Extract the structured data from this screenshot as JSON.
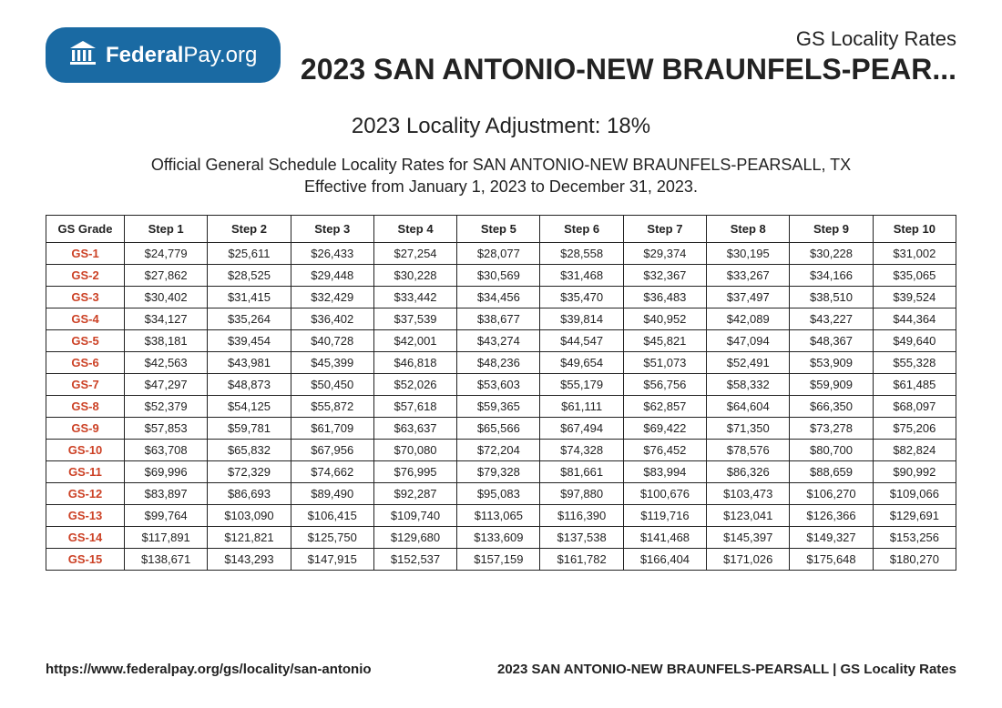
{
  "logo": {
    "text_bold": "Federal",
    "text_light": "Pay.org"
  },
  "header": {
    "subtitle": "GS Locality Rates",
    "title": "2023 SAN ANTONIO-NEW BRAUNFELS-PEAR..."
  },
  "adjustment_line": "2023 Locality Adjustment: 18%",
  "desc_line1": "Official General Schedule Locality Rates for SAN ANTONIO-NEW BRAUNFELS-PEARSALL, TX",
  "desc_line2": "Effective from January 1, 2023 to December 31, 2023.",
  "table": {
    "columns": [
      "GS Grade",
      "Step 1",
      "Step 2",
      "Step 3",
      "Step 4",
      "Step 5",
      "Step 6",
      "Step 7",
      "Step 8",
      "Step 9",
      "Step 10"
    ],
    "rows": [
      [
        "GS-1",
        "$24,779",
        "$25,611",
        "$26,433",
        "$27,254",
        "$28,077",
        "$28,558",
        "$29,374",
        "$30,195",
        "$30,228",
        "$31,002"
      ],
      [
        "GS-2",
        "$27,862",
        "$28,525",
        "$29,448",
        "$30,228",
        "$30,569",
        "$31,468",
        "$32,367",
        "$33,267",
        "$34,166",
        "$35,065"
      ],
      [
        "GS-3",
        "$30,402",
        "$31,415",
        "$32,429",
        "$33,442",
        "$34,456",
        "$35,470",
        "$36,483",
        "$37,497",
        "$38,510",
        "$39,524"
      ],
      [
        "GS-4",
        "$34,127",
        "$35,264",
        "$36,402",
        "$37,539",
        "$38,677",
        "$39,814",
        "$40,952",
        "$42,089",
        "$43,227",
        "$44,364"
      ],
      [
        "GS-5",
        "$38,181",
        "$39,454",
        "$40,728",
        "$42,001",
        "$43,274",
        "$44,547",
        "$45,821",
        "$47,094",
        "$48,367",
        "$49,640"
      ],
      [
        "GS-6",
        "$42,563",
        "$43,981",
        "$45,399",
        "$46,818",
        "$48,236",
        "$49,654",
        "$51,073",
        "$52,491",
        "$53,909",
        "$55,328"
      ],
      [
        "GS-7",
        "$47,297",
        "$48,873",
        "$50,450",
        "$52,026",
        "$53,603",
        "$55,179",
        "$56,756",
        "$58,332",
        "$59,909",
        "$61,485"
      ],
      [
        "GS-8",
        "$52,379",
        "$54,125",
        "$55,872",
        "$57,618",
        "$59,365",
        "$61,111",
        "$62,857",
        "$64,604",
        "$66,350",
        "$68,097"
      ],
      [
        "GS-9",
        "$57,853",
        "$59,781",
        "$61,709",
        "$63,637",
        "$65,566",
        "$67,494",
        "$69,422",
        "$71,350",
        "$73,278",
        "$75,206"
      ],
      [
        "GS-10",
        "$63,708",
        "$65,832",
        "$67,956",
        "$70,080",
        "$72,204",
        "$74,328",
        "$76,452",
        "$78,576",
        "$80,700",
        "$82,824"
      ],
      [
        "GS-11",
        "$69,996",
        "$72,329",
        "$74,662",
        "$76,995",
        "$79,328",
        "$81,661",
        "$83,994",
        "$86,326",
        "$88,659",
        "$90,992"
      ],
      [
        "GS-12",
        "$83,897",
        "$86,693",
        "$89,490",
        "$92,287",
        "$95,083",
        "$97,880",
        "$100,676",
        "$103,473",
        "$106,270",
        "$109,066"
      ],
      [
        "GS-13",
        "$99,764",
        "$103,090",
        "$106,415",
        "$109,740",
        "$113,065",
        "$116,390",
        "$119,716",
        "$123,041",
        "$126,366",
        "$129,691"
      ],
      [
        "GS-14",
        "$117,891",
        "$121,821",
        "$125,750",
        "$129,680",
        "$133,609",
        "$137,538",
        "$141,468",
        "$145,397",
        "$149,327",
        "$153,256"
      ],
      [
        "GS-15",
        "$138,671",
        "$143,293",
        "$147,915",
        "$152,537",
        "$157,159",
        "$161,782",
        "$166,404",
        "$171,026",
        "$175,648",
        "$180,270"
      ]
    ],
    "grade_color": "#cc4125",
    "border_color": "#222222",
    "header_fontsize": 13,
    "cell_fontsize": 13
  },
  "footer": {
    "left": "https://www.federalpay.org/gs/locality/san-antonio",
    "right": "2023 SAN ANTONIO-NEW BRAUNFELS-PEARSALL | GS Locality Rates"
  },
  "colors": {
    "badge_bg": "#1a6aa3",
    "text": "#222222",
    "grade_link": "#cc4125",
    "background": "#ffffff"
  }
}
